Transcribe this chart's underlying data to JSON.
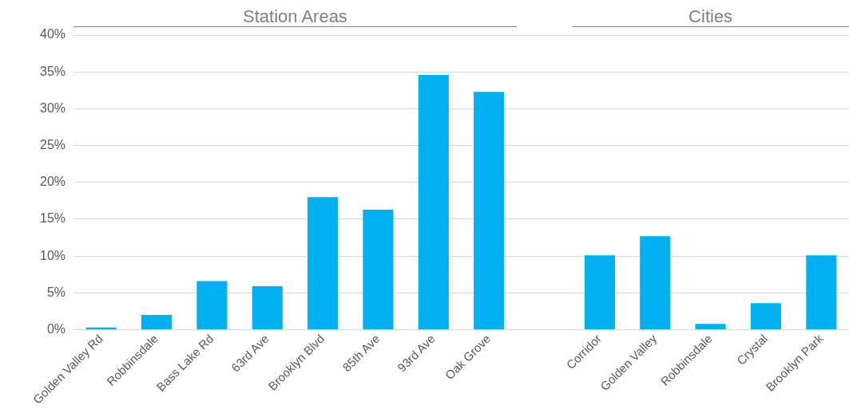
{
  "chart_data": {
    "type": "bar",
    "categories": [
      "Golden Valley Rd",
      "Robbinsdale",
      "Bass Lake Rd",
      "63rd Ave",
      "Brooklyn Blvd",
      "85th Ave",
      "93rd Ave",
      "Oak Grove",
      null,
      "Corridor",
      "Golden Valley",
      "Robbinsdale",
      "Crystal",
      "Brooklyn Park"
    ],
    "values": [
      0.3,
      2.0,
      6.6,
      5.9,
      18.0,
      16.3,
      34.6,
      32.3,
      null,
      10.1,
      12.7,
      0.8,
      3.6,
      10.1
    ],
    "color": "#00b0f0",
    "ylim": [
      0,
      40
    ],
    "yticks": [
      {
        "value": 0,
        "label": "0%"
      },
      {
        "value": 5,
        "label": "5%"
      },
      {
        "value": 10,
        "label": "10%"
      },
      {
        "value": 15,
        "label": "15%"
      },
      {
        "value": 20,
        "label": "20%"
      },
      {
        "value": 25,
        "label": "25%"
      },
      {
        "value": 30,
        "label": "30%"
      },
      {
        "value": 35,
        "label": "35%"
      },
      {
        "value": 40,
        "label": "40%"
      }
    ],
    "grid": "y",
    "legend": false,
    "annotations": [
      "Station Areas",
      "Cities"
    ]
  }
}
